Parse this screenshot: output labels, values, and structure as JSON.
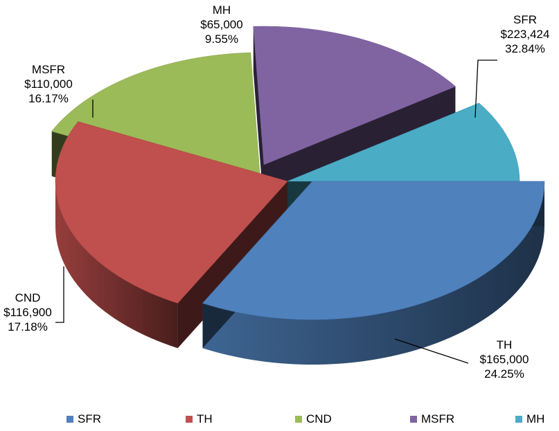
{
  "chart_data": {
    "type": "pie",
    "style": "3d-exploded",
    "title": "",
    "legend_position": "bottom",
    "slices": [
      {
        "name": "SFR",
        "value": 223424,
        "value_label": "$223,424",
        "percent": 32.84,
        "percent_label": "32.84%",
        "color": "#4f81bd"
      },
      {
        "name": "TH",
        "value": 165000,
        "value_label": "$165,000",
        "percent": 24.25,
        "percent_label": "24.25%",
        "color": "#c0504d"
      },
      {
        "name": "CND",
        "value": 116900,
        "value_label": "$116,900",
        "percent": 17.18,
        "percent_label": "17.18%",
        "color": "#9bbb59"
      },
      {
        "name": "MSFR",
        "value": 110000,
        "value_label": "$110,000",
        "percent": 16.17,
        "percent_label": "16.17%",
        "color": "#8064a2"
      },
      {
        "name": "MH",
        "value": 65000,
        "value_label": "$65,000",
        "percent": 9.55,
        "percent_label": "9.55%",
        "color": "#4bacc6"
      }
    ]
  }
}
